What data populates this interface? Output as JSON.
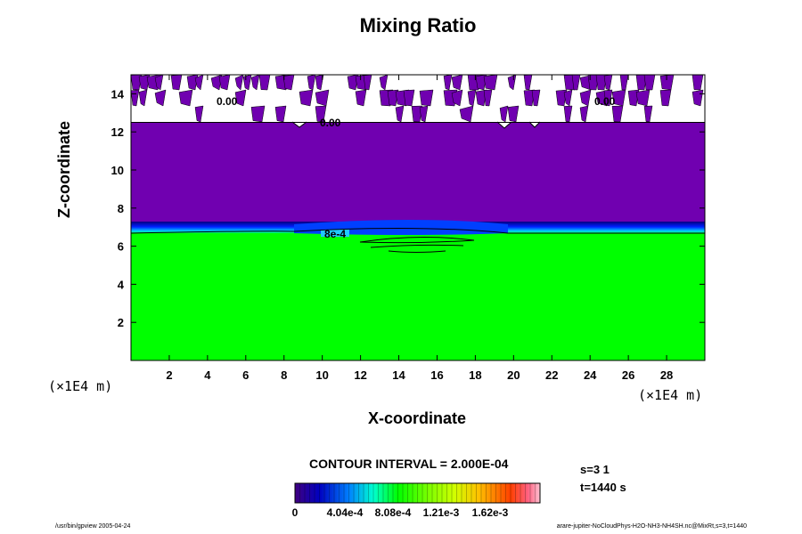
{
  "chart_data": {
    "type": "heatmap",
    "title": "Mixing Ratio",
    "xlabel": "X-coordinate",
    "ylabel": "Z-coordinate",
    "x_unit": "(×1E4 m)",
    "y_unit": "(×1E4 m)",
    "xlim": [
      0,
      30
    ],
    "ylim": [
      0,
      15
    ],
    "x_ticks": [
      "2",
      "4",
      "6",
      "8",
      "10",
      "12",
      "14",
      "16",
      "18",
      "20",
      "22",
      "24",
      "26",
      "28"
    ],
    "y_ticks": [
      "2",
      "4",
      "6",
      "8",
      "10",
      "12",
      "14"
    ],
    "contour_labels": [
      "0.00",
      "0.00",
      "0.00",
      "8e-4"
    ],
    "contour_interval": "CONTOUR INTERVAL = 2.000E-04",
    "colorbar_ticks": [
      "0",
      "4.04e-4",
      "8.08e-4",
      "1.21e-3",
      "1.62e-3"
    ],
    "colorbar_range": [
      0,
      0.00202
    ],
    "regions": [
      {
        "name": "lower layer",
        "z_range": [
          0,
          6.7
        ],
        "value": 0.001,
        "color": "#00ff00"
      },
      {
        "name": "transition layer",
        "z_range": [
          6.7,
          7.1
        ],
        "value": 0.0004,
        "color": "#0a3cff"
      },
      {
        "name": "upper layer",
        "z_range": [
          7.1,
          12.4
        ],
        "value": 0.0,
        "color": "#7000b0"
      },
      {
        "name": "top noisy layer",
        "z_range": [
          12.4,
          15
        ],
        "value": 0.0,
        "color": "#7000b0"
      }
    ],
    "grid": false
  },
  "info": {
    "step": "s=3 1",
    "time": "t=1440 s"
  },
  "footer": {
    "left": "/usr/bin/gpview 2005-04-24",
    "right": "arare-jupiter-NoCloudPhys-H2O-NH3-NH4SH.nc@MixRt,s=3,t=1440"
  },
  "colors": {
    "purple": "#7000b0",
    "green": "#00ff00",
    "blue": "#0a3cff"
  }
}
